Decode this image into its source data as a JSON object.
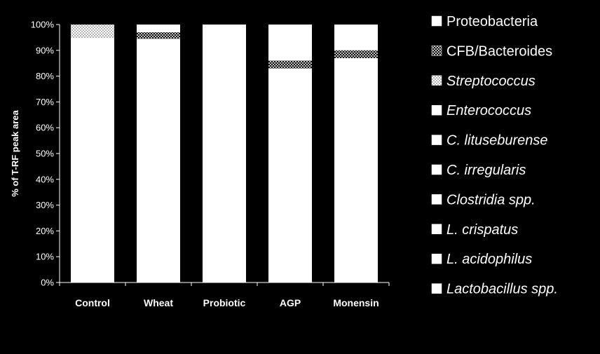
{
  "chart_data": {
    "type": "bar",
    "stacked": true,
    "percent": true,
    "ylabel": "% of T-RF peak area",
    "xlabel": "",
    "ylim": [
      0,
      100
    ],
    "yticks": [
      "0%",
      "10%",
      "20%",
      "30%",
      "40%",
      "50%",
      "60%",
      "70%",
      "80%",
      "90%",
      "100%"
    ],
    "categories": [
      "Control",
      "Wheat",
      "Probiotic",
      "AGP",
      "Monensin"
    ],
    "series": [
      {
        "name": "Lactobacillus  spp.",
        "italic": true,
        "pattern": "solid",
        "values": [
          95,
          94.5,
          100,
          83,
          87
        ]
      },
      {
        "name": "L. acidophilus",
        "italic": true,
        "pattern": "solid",
        "values": [
          0,
          0,
          0,
          0,
          0
        ]
      },
      {
        "name": "L. crispatus",
        "italic": true,
        "pattern": "solid",
        "values": [
          0,
          0,
          0,
          0,
          0
        ]
      },
      {
        "name": "Clostridia spp.",
        "italic": true,
        "pattern": "solid",
        "values": [
          0,
          0,
          0,
          0,
          0
        ]
      },
      {
        "name": "C. irregularis",
        "italic": true,
        "pattern": "solid",
        "values": [
          0,
          0,
          0,
          0,
          0
        ]
      },
      {
        "name": "C. lituseburense",
        "italic": true,
        "pattern": "solid",
        "values": [
          0,
          0,
          0,
          0,
          0
        ]
      },
      {
        "name": "Enterococcus",
        "italic": true,
        "pattern": "solid",
        "values": [
          0,
          0,
          0,
          0,
          0
        ]
      },
      {
        "name": "Streptococcus",
        "italic": true,
        "pattern": "dots",
        "values": [
          5,
          0,
          0,
          0,
          0
        ]
      },
      {
        "name": "CFB/Bacteroides",
        "italic": false,
        "pattern": "crosshatch",
        "values": [
          0,
          2.5,
          0,
          3,
          3
        ]
      },
      {
        "name": "Proteobacteria",
        "italic": false,
        "pattern": "solid",
        "values": [
          0,
          3,
          0,
          14,
          10
        ]
      }
    ],
    "legend_position": "right",
    "grid": false
  },
  "colors": {
    "background": "#000000",
    "bar": "#ffffff",
    "pattern_ink": "#000000"
  }
}
